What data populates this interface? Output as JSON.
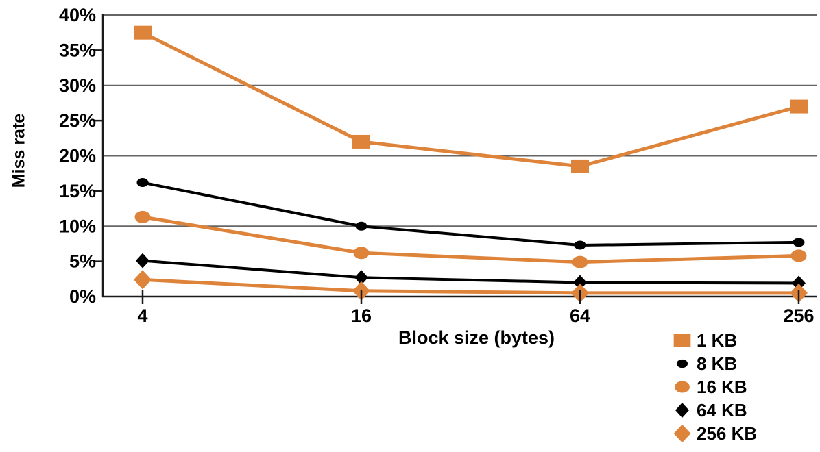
{
  "chart_data": {
    "type": "line",
    "title": "",
    "xlabel": "Block size (bytes)",
    "ylabel": "Miss rate",
    "categories": [
      "4",
      "16",
      "64",
      "256"
    ],
    "y_ticks": [
      "0%",
      "5%",
      "10%",
      "15%",
      "20%",
      "25%",
      "30%",
      "35%",
      "40%"
    ],
    "ylim": [
      0,
      40
    ],
    "gridline_values": [
      10,
      20,
      30,
      40
    ],
    "minor_tick_values": [
      5,
      15,
      25,
      35
    ],
    "grid": "horizontal gridlines every 10%, short axis ticks every 5%",
    "legend_position": "bottom-right, below plot",
    "colors": {
      "orange": "#DE833A",
      "black": "#000000",
      "gridline": "#666666",
      "axis": "#1a1a1a"
    },
    "series": [
      {
        "name": "1 KB",
        "marker": "square",
        "color": "#DE833A",
        "values": [
          37.5,
          22.0,
          18.5,
          27.0
        ]
      },
      {
        "name": "8 KB",
        "marker": "ellipse-sm",
        "color": "#000000",
        "values": [
          16.2,
          10.0,
          7.3,
          7.7
        ]
      },
      {
        "name": "16 KB",
        "marker": "ellipse-lg",
        "color": "#DE833A",
        "values": [
          11.3,
          6.2,
          4.9,
          5.8
        ]
      },
      {
        "name": "64 KB",
        "marker": "diamond-sm",
        "color": "#000000",
        "values": [
          5.1,
          2.7,
          2.0,
          1.9
        ]
      },
      {
        "name": "256 KB",
        "marker": "diamond-lg",
        "color": "#DE833A",
        "values": [
          2.4,
          0.8,
          0.5,
          0.5
        ]
      }
    ]
  }
}
